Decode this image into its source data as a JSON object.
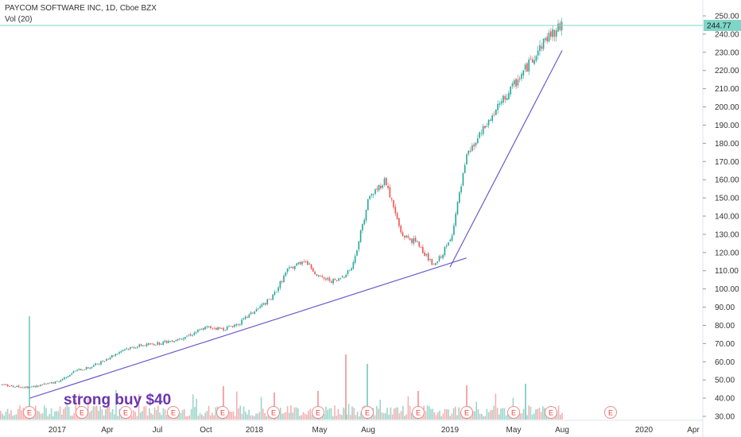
{
  "header": {
    "title": "PAYCOM SOFTWARE INC, 1D, Cboe BZX",
    "volume_label": "Vol (20)"
  },
  "chart_data": {
    "type": "candlestick",
    "title": "PAYCOM SOFTWARE INC, 1D, Cboe BZX",
    "ylim": [
      28,
      252
    ],
    "y_ticks": [
      "250.00",
      "240.00",
      "230.00",
      "220.00",
      "210.00",
      "200.00",
      "190.00",
      "180.00",
      "170.00",
      "160.00",
      "150.00",
      "140.00",
      "130.00",
      "120.00",
      "110.00",
      "100.00",
      "90.00",
      "80.00",
      "70.00",
      "60.00",
      "50.00",
      "40.00",
      "30.00"
    ],
    "x_ticks": [
      "2017",
      "Apr",
      "Jul",
      "Oct",
      "2018",
      "May",
      "Aug",
      "2019",
      "May",
      "Aug",
      "2020",
      "Apr"
    ],
    "last_price": "244.77",
    "price_path": [
      {
        "date": "2016-10",
        "close": 48
      },
      {
        "date": "2016-11",
        "close": 47
      },
      {
        "date": "2016-12",
        "close": 46
      },
      {
        "date": "2017-01",
        "close": 49
      },
      {
        "date": "2017-02",
        "close": 55
      },
      {
        "date": "2017-03",
        "close": 57
      },
      {
        "date": "2017-04",
        "close": 62
      },
      {
        "date": "2017-05",
        "close": 67
      },
      {
        "date": "2017-06",
        "close": 69
      },
      {
        "date": "2017-07",
        "close": 70
      },
      {
        "date": "2017-08",
        "close": 72
      },
      {
        "date": "2017-09",
        "close": 75
      },
      {
        "date": "2017-10",
        "close": 79
      },
      {
        "date": "2017-11",
        "close": 78
      },
      {
        "date": "2017-12",
        "close": 81
      },
      {
        "date": "2018-01",
        "close": 88
      },
      {
        "date": "2018-02",
        "close": 95
      },
      {
        "date": "2018-03",
        "close": 110
      },
      {
        "date": "2018-04",
        "close": 116
      },
      {
        "date": "2018-05",
        "close": 106
      },
      {
        "date": "2018-06",
        "close": 104
      },
      {
        "date": "2018-07",
        "close": 112
      },
      {
        "date": "2018-08",
        "close": 150
      },
      {
        "date": "2018-09",
        "close": 160
      },
      {
        "date": "2018-10",
        "close": 130
      },
      {
        "date": "2018-11",
        "close": 125
      },
      {
        "date": "2018-12",
        "close": 112
      },
      {
        "date": "2019-01",
        "close": 127
      },
      {
        "date": "2019-02",
        "close": 173
      },
      {
        "date": "2019-03",
        "close": 186
      },
      {
        "date": "2019-04",
        "close": 200
      },
      {
        "date": "2019-05",
        "close": 212
      },
      {
        "date": "2019-06",
        "close": 225
      },
      {
        "date": "2019-07",
        "close": 238
      },
      {
        "date": "2019-08",
        "close": 244.77
      }
    ],
    "trendlines": [
      {
        "from": {
          "date": "2016-12",
          "value": 40
        },
        "to": {
          "date": "2019-02",
          "value": 117
        }
      },
      {
        "from": {
          "date": "2019-01",
          "value": 112
        },
        "to": {
          "date": "2019-08",
          "value": 231
        }
      }
    ],
    "earnings_marker": "E",
    "annotation": "strong buy $40"
  }
}
